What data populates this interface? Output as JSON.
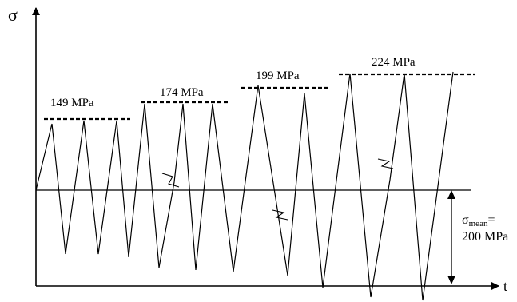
{
  "axes": {
    "y_symbol": "σ",
    "x_symbol": "t"
  },
  "levels": [
    {
      "label": "149 MPa"
    },
    {
      "label": "174 MPa"
    },
    {
      "label": "199 MPa"
    },
    {
      "label": "224 MPa"
    }
  ],
  "mean": {
    "symbol": "σ",
    "subscript": "mean",
    "equals": "=",
    "value": "200 MPa"
  }
}
